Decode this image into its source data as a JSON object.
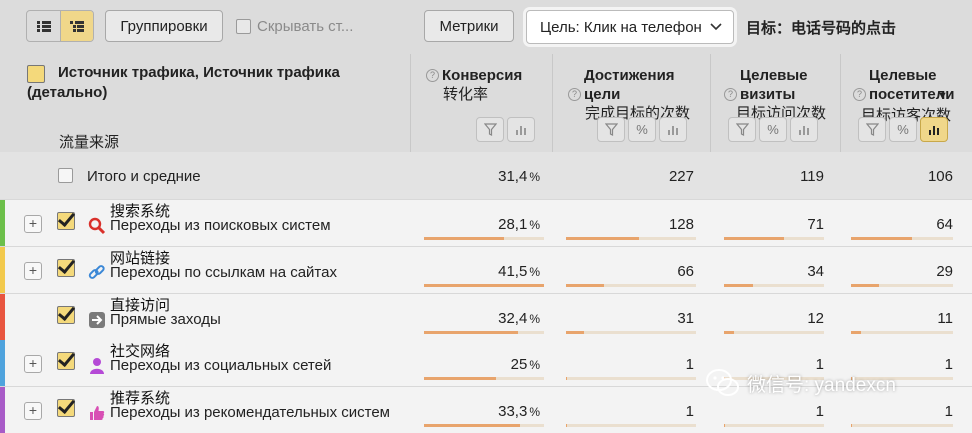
{
  "toolbar": {
    "grouping": "Группировки",
    "hide": "Скрывать ст...",
    "metrics": "Метрики",
    "goal_select": "Цель: Клик на телефон",
    "goal_label": "目标：电话号码的点击"
  },
  "header": {
    "dimension_title": "Источник трафика, Источник трафика (детально)",
    "dimension_cn": "流量来源",
    "columns": [
      {
        "title": "Конверсия",
        "sub": "转化率"
      },
      {
        "title": "Достижения цели",
        "sub": "完成目标的次数"
      },
      {
        "title": "Целевые визиты",
        "sub": "目标访问次数"
      },
      {
        "title": "Целевые посетители",
        "sub": "目标访客次数",
        "sort": "▼"
      }
    ]
  },
  "total": {
    "label": "Итого и средние",
    "conv": "31,4",
    "goals": "227",
    "visits": "119",
    "visitors": "106"
  },
  "rows": [
    {
      "cn": "搜索系统",
      "ru": "Переходы из поисковых систем",
      "conv": "28,1",
      "goals": "128",
      "visits": "71",
      "visitors": "64",
      "color": "#6cbf4a",
      "icon": "search-icon",
      "bars": [
        0.67,
        0.56,
        0.6,
        0.6
      ]
    },
    {
      "cn": "网站链接",
      "ru": "Переходы по ссылкам на сайтах",
      "conv": "41,5",
      "goals": "66",
      "visits": "34",
      "visitors": "29",
      "color": "#f2c94c",
      "icon": "link-icon",
      "bars": [
        1.0,
        0.29,
        0.29,
        0.27
      ]
    },
    {
      "cn": "直接访问",
      "ru": "Прямые заходы",
      "conv": "32,4",
      "goals": "31",
      "visits": "12",
      "visitors": "11",
      "color": "#e8553f",
      "icon": "direct-arrow-icon",
      "bars": [
        0.78,
        0.14,
        0.1,
        0.1
      ]
    },
    {
      "cn": "社交网络",
      "ru": "Переходы из социальных сетей",
      "conv": "25",
      "goals": "1",
      "visits": "1",
      "visitors": "1",
      "color": "#4fa3dd",
      "icon": "social-person-icon",
      "bars": [
        0.6,
        0.01,
        0.01,
        0.01
      ]
    },
    {
      "cn": "推荐系统",
      "ru": "Переходы из рекомендательных систем",
      "conv": "33,3",
      "goals": "1",
      "visits": "1",
      "visitors": "1",
      "color": "#a85bc7",
      "icon": "thumbs-up-icon",
      "bars": [
        0.8,
        0.01,
        0.01,
        0.01
      ]
    }
  ],
  "unit": "%",
  "watermark": "微信号: yandexcn"
}
